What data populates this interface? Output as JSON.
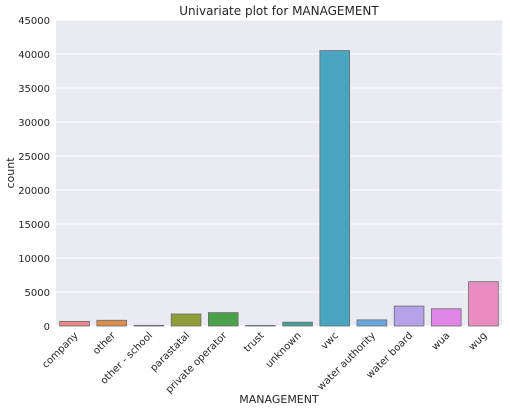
{
  "chart_data": {
    "type": "bar",
    "title": "Univariate plot for MANAGEMENT",
    "xlabel": "MANAGEMENT",
    "ylabel": "count",
    "ylim": [
      0,
      45000
    ],
    "yticks": [
      0,
      5000,
      10000,
      15000,
      20000,
      25000,
      30000,
      35000,
      40000,
      45000
    ],
    "grid": true,
    "categories": [
      "company",
      "other",
      "other - school",
      "parastatal",
      "private operator",
      "trust",
      "unknown",
      "vwc",
      "water authority",
      "water board",
      "wua",
      "wug"
    ],
    "values": [
      685,
      844,
      99,
      1768,
      1971,
      78,
      561,
      40507,
      904,
      2933,
      2535,
      6515
    ],
    "colors": [
      "#e8888b",
      "#dd8d4e",
      "#b59636",
      "#8f9c3a",
      "#4ba04b",
      "#3ca38a",
      "#40a29b",
      "#49a5bf",
      "#6aa8dc",
      "#b3a2e8",
      "#df86e8",
      "#e98cc0"
    ]
  }
}
